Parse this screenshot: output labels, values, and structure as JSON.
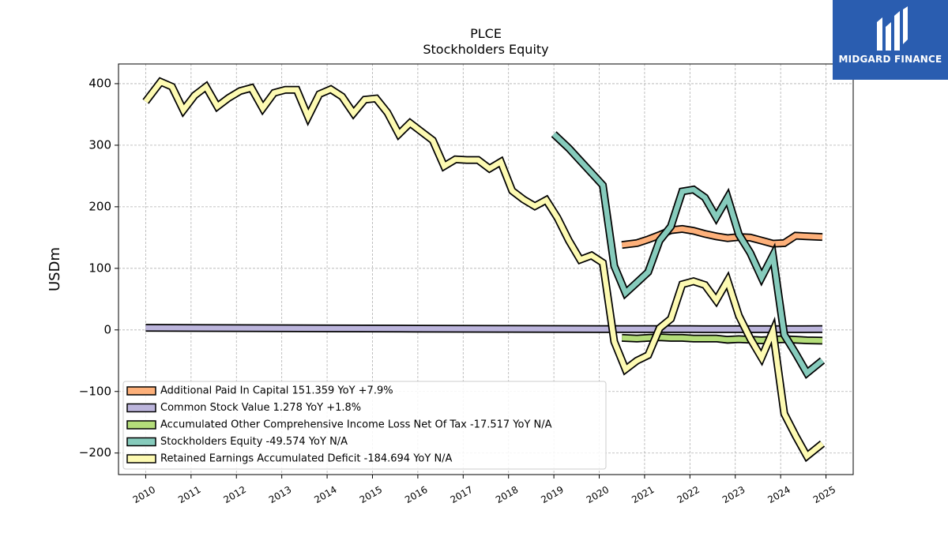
{
  "chart_data": {
    "type": "line",
    "title": "PLCE",
    "subtitle": "Stockholders  Equity",
    "ylabel": "USDm",
    "ylim": [
      -235,
      432
    ],
    "xlim": [
      2009.4,
      2025.6
    ],
    "yticks": [
      -200,
      -100,
      0,
      100,
      200,
      300,
      400
    ],
    "ytick_labels": [
      "−200",
      "−100",
      "0",
      "100",
      "200",
      "300",
      "400"
    ],
    "xticks": [
      2010,
      2011,
      2012,
      2013,
      2014,
      2015,
      2016,
      2017,
      2018,
      2019,
      2020,
      2021,
      2022,
      2023,
      2024,
      2025
    ],
    "xtick_labels": [
      "2010",
      "2011",
      "2012",
      "2013",
      "2014",
      "2015",
      "2016",
      "2017",
      "2018",
      "2019",
      "2020",
      "2021",
      "2022",
      "2023",
      "2024",
      "2025"
    ],
    "grid": true,
    "legend_position": "lower-left",
    "series": [
      {
        "name": "Additional Paid In Capital  151.359 YoY +7.9%",
        "color": "#fdb07a",
        "x": [
          2020.5,
          2020.83,
          2021.08,
          2021.33,
          2021.58,
          2021.83,
          2022.08,
          2022.33,
          2022.58,
          2022.83,
          2023.08,
          2023.33,
          2023.58,
          2023.83,
          2024.08,
          2024.33,
          2024.58,
          2024.92
        ],
        "y": [
          138,
          141,
          147,
          154,
          162,
          164,
          161,
          156,
          152,
          149,
          151,
          150,
          145,
          140,
          141,
          153,
          152,
          151
        ]
      },
      {
        "name": "Common Stock Value  1.278 YoY +1.8%",
        "color": "#bcb5dc",
        "x": [
          2010,
          2012,
          2014,
          2016,
          2018,
          2020,
          2021,
          2022,
          2023,
          2024,
          2024.92
        ],
        "y": [
          3.5,
          2.9,
          2.4,
          2.0,
          1.6,
          1.3,
          1.3,
          1.3,
          1.2,
          1.2,
          1.3
        ]
      },
      {
        "name": "Accumulated Other Comprehensive Income Loss Net Of Tax  -17.517 YoY N/A",
        "color": "#b4dd7a",
        "x": [
          2020.5,
          2020.83,
          2021.08,
          2021.33,
          2021.58,
          2021.83,
          2022.08,
          2022.33,
          2022.58,
          2022.83,
          2023.08,
          2023.33,
          2023.58,
          2023.83,
          2024.08,
          2024.33,
          2024.58,
          2024.92
        ],
        "y": [
          -13,
          -14,
          -13,
          -12,
          -13,
          -13,
          -14,
          -14,
          -14,
          -16,
          -15,
          -16,
          -17,
          -16,
          -15,
          -16,
          -17,
          -17.5
        ]
      },
      {
        "name": "Stockholders Equity  -49.574 YoY N/A",
        "color": "#86cbbc",
        "x": [
          2019.0,
          2019.33,
          2019.58,
          2019.83,
          2020.08,
          2020.33,
          2020.58,
          2020.83,
          2021.08,
          2021.33,
          2021.58,
          2021.83,
          2022.08,
          2022.33,
          2022.58,
          2022.83,
          2023.08,
          2023.33,
          2023.58,
          2023.83,
          2024.08,
          2024.33,
          2024.58,
          2024.92
        ],
        "y": [
          318,
          295,
          275,
          255,
          235,
          104,
          60,
          77,
          94,
          145,
          168,
          225,
          228,
          215,
          183,
          215,
          155,
          125,
          85,
          121,
          -8,
          -38,
          -70,
          -49.6
        ]
      },
      {
        "name": "Retained Earnings Accumulated Deficit  -184.694 YoY N/A",
        "color": "#fdfab2",
        "x": [
          2010.0,
          2010.33,
          2010.58,
          2010.83,
          2011.08,
          2011.33,
          2011.58,
          2011.83,
          2012.08,
          2012.33,
          2012.58,
          2012.83,
          2013.08,
          2013.33,
          2013.58,
          2013.83,
          2014.08,
          2014.33,
          2014.58,
          2014.83,
          2015.08,
          2015.33,
          2015.58,
          2015.83,
          2016.08,
          2016.33,
          2016.58,
          2016.83,
          2017.08,
          2017.33,
          2017.58,
          2017.83,
          2018.08,
          2018.33,
          2018.58,
          2018.83,
          2019.08,
          2019.33,
          2019.58,
          2019.83,
          2020.08,
          2020.33,
          2020.58,
          2020.83,
          2021.08,
          2021.33,
          2021.58,
          2021.83,
          2022.08,
          2022.33,
          2022.58,
          2022.83,
          2023.08,
          2023.33,
          2023.58,
          2023.83,
          2024.08,
          2024.33,
          2024.58,
          2024.92
        ],
        "y": [
          371,
          403,
          395,
          357,
          381,
          395,
          363,
          377,
          388,
          393,
          360,
          385,
          390,
          390,
          346,
          383,
          391,
          379,
          352,
          374,
          376,
          353,
          318,
          336,
          322,
          308,
          266,
          277,
          276,
          276,
          262,
          273,
          226,
          212,
          201,
          211,
          182,
          145,
          114,
          121,
          109,
          -19,
          -64,
          -50,
          -41,
          3,
          18,
          74,
          79,
          73,
          48,
          80,
          23,
          -14,
          -45,
          -2,
          -136,
          -172,
          -205,
          -184.7
        ]
      }
    ]
  },
  "logo": {
    "text": "MIDGARD FINANCE"
  }
}
